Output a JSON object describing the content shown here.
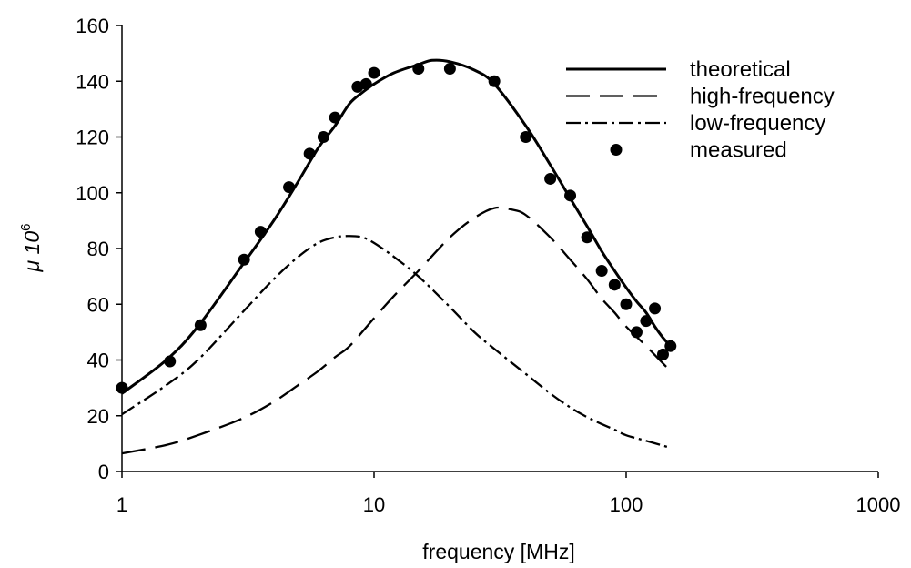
{
  "chart_data": {
    "type": "line",
    "title": "",
    "xlabel": "frequency [MHz]",
    "ylabel": "μ 10",
    "ylabel_superscript": "6",
    "x_scale": "log",
    "xlim": [
      1,
      1000
    ],
    "ylim": [
      0,
      160
    ],
    "x_ticks": [
      1,
      10,
      100,
      1000
    ],
    "y_ticks": [
      0,
      20,
      40,
      60,
      80,
      100,
      120,
      140,
      160
    ],
    "grid": false,
    "legend_position": "top-right",
    "series": [
      {
        "name": "theoretical",
        "style": "solid",
        "x": [
          1,
          1.5,
          2,
          3,
          4,
          5,
          6,
          7,
          8,
          9,
          10,
          12,
          15,
          17,
          20,
          25,
          30,
          40,
          50,
          60,
          70,
          80,
          90,
          100,
          110,
          120,
          130,
          140,
          150
        ],
        "y": [
          28,
          40,
          52,
          74,
          90,
          104,
          116,
          124,
          132,
          136,
          139,
          143,
          146,
          147.5,
          147,
          144,
          139,
          124,
          110,
          98,
          88,
          79,
          72,
          66,
          61,
          57,
          52,
          48,
          45
        ]
      },
      {
        "name": "high-frequency",
        "style": "dashed",
        "x": [
          1,
          1.5,
          2,
          3,
          4,
          5,
          6,
          7,
          8,
          10,
          12,
          15,
          20,
          25,
          30,
          35,
          40,
          50,
          60,
          70,
          80,
          90,
          100,
          120,
          150
        ],
        "y": [
          6.5,
          9.5,
          13,
          19,
          25,
          31,
          36,
          41,
          45,
          55,
          63,
          72,
          84,
          91,
          94.5,
          94,
          92,
          84,
          76,
          69,
          62,
          57,
          52,
          45,
          36
        ]
      },
      {
        "name": "low-frequency",
        "style": "dash-dot",
        "x": [
          1,
          1.5,
          2,
          3,
          4,
          5,
          6,
          7,
          8,
          9,
          10,
          12,
          15,
          20,
          25,
          30,
          40,
          50,
          60,
          70,
          80,
          90,
          100,
          120,
          150
        ],
        "y": [
          20.5,
          31,
          40,
          57,
          69,
          77,
          82,
          84,
          84.5,
          84,
          82,
          77,
          70,
          59,
          50,
          44,
          35,
          28,
          23,
          19.5,
          17,
          15,
          13,
          11,
          8.5
        ]
      },
      {
        "name": "measured",
        "style": "markers",
        "x": [
          1,
          1.55,
          2.05,
          3.05,
          3.55,
          4.6,
          5.55,
          6.3,
          7,
          8.6,
          9.3,
          10,
          15,
          20,
          30,
          40,
          50,
          60,
          70,
          80,
          90,
          100,
          110,
          120,
          130,
          140,
          150
        ],
        "y": [
          30,
          39.5,
          52.5,
          76,
          86,
          102,
          114,
          120,
          127,
          138,
          139,
          143,
          144.5,
          144.5,
          140,
          120,
          105,
          99,
          84,
          72,
          67,
          60,
          50,
          54,
          58.5,
          42,
          45
        ]
      }
    ]
  }
}
